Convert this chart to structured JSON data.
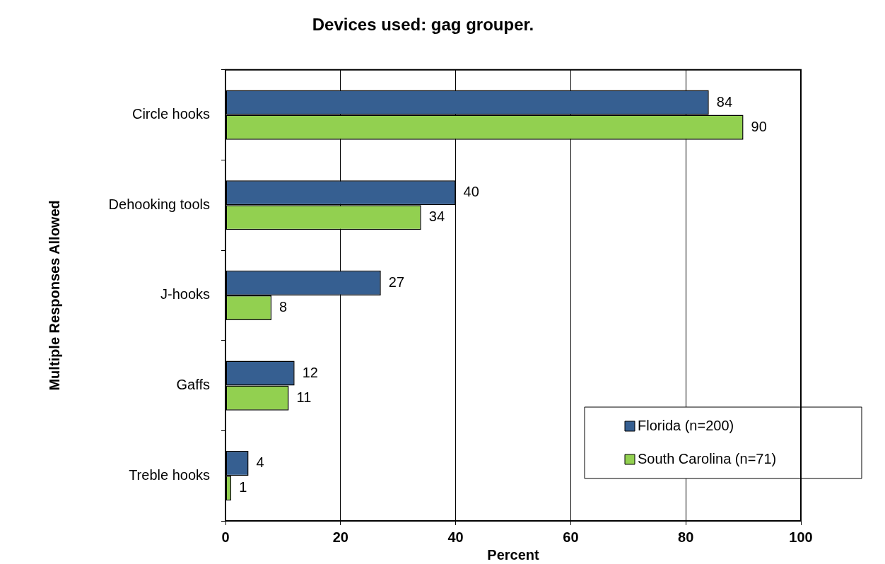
{
  "chart_data": {
    "type": "bar",
    "orientation": "horizontal",
    "title": "Devices used: gag grouper.",
    "xlabel": "Percent",
    "ylabel": "Multiple Responses Allowed",
    "categories": [
      "Circle hooks",
      "Dehooking tools",
      "J-hooks",
      "Gaffs",
      "Treble hooks"
    ],
    "series": [
      {
        "name": "Florida (n=200)",
        "color": "#365f91",
        "values": [
          84,
          40,
          27,
          12,
          4
        ]
      },
      {
        "name": "South Carolina (n=71)",
        "color": "#92d050",
        "values": [
          90,
          34,
          8,
          11,
          1
        ]
      }
    ],
    "xlim": [
      0,
      100
    ],
    "xticks": [
      0,
      20,
      40,
      60,
      80,
      100
    ],
    "grid": "x",
    "legend": "bottom right",
    "data_labels": true
  }
}
